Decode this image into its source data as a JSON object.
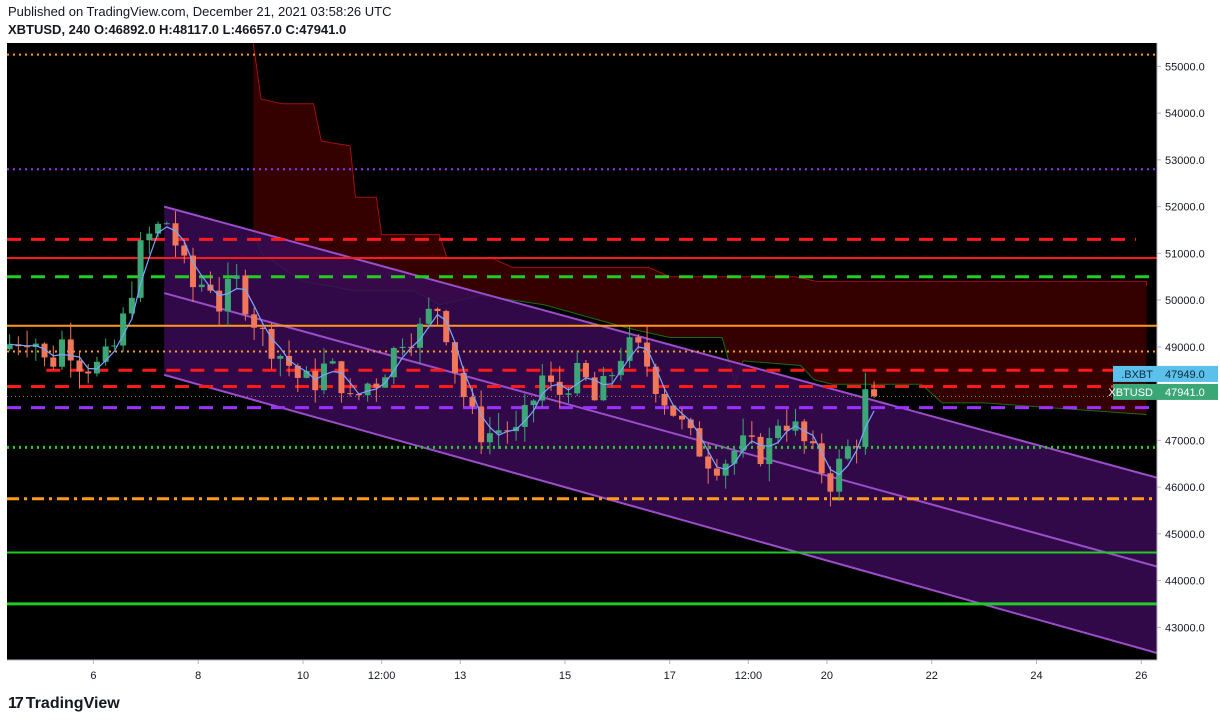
{
  "header": {
    "published": "Published on TradingView.com, December 21, 2021 03:58:26 UTC",
    "symbol": "XBTUSD, 240",
    "ohlc": "O:46892.0 H:48117.0 L:46657.0 C:47941.0"
  },
  "footer": {
    "brand": "TradingView",
    "brand_mark": "17"
  },
  "colors": {
    "background": "#000000",
    "channel_fill": "#3a0a55",
    "channel_line": "#9b4dca",
    "cloud_fill": "#3a0000",
    "up": "#3ba776",
    "down": "#f0775a",
    "red_line": "#ff1a1a",
    "green_line": "#22cc22",
    "orange_line": "#ff9a1a",
    "purple_line": "#9b30ff",
    "bxbt_tag": "#5bc0eb",
    "xbt_tag": "#3ba776"
  },
  "chart_data": {
    "type": "candlestick",
    "symbol": "XBTUSD",
    "interval": "240",
    "ylim": [
      42300,
      55500
    ],
    "y_ticks": [
      43000,
      44000,
      45000,
      46000,
      47000,
      48000,
      49000,
      50000,
      51000,
      52000,
      53000,
      54000,
      55000
    ],
    "y_tick_labels": [
      "43000.0",
      "44000.0",
      "45000.0",
      "46000.0",
      "47000.0",
      "48000.0",
      "49000.0",
      "50000.0",
      "51000.0",
      "52000.0",
      "53000.0",
      "54000.0",
      "55000.0"
    ],
    "xlim": [
      4.35,
      26.3
    ],
    "x_ticks": [
      {
        "pos": 6,
        "label": "6"
      },
      {
        "pos": 8,
        "label": "8"
      },
      {
        "pos": 10,
        "label": "10"
      },
      {
        "pos": 11.5,
        "label": "12:00"
      },
      {
        "pos": 13,
        "label": "13"
      },
      {
        "pos": 15,
        "label": "15"
      },
      {
        "pos": 17,
        "label": "17"
      },
      {
        "pos": 18.5,
        "label": "12:00"
      },
      {
        "pos": 20,
        "label": "20"
      },
      {
        "pos": 22,
        "label": "22"
      },
      {
        "pos": 24,
        "label": "24"
      },
      {
        "pos": 26,
        "label": "26"
      }
    ],
    "candle_anchors": [
      [
        4.4,
        48950
      ],
      [
        4.7,
        49150
      ],
      [
        5.0,
        49300
      ],
      [
        5.3,
        48500
      ],
      [
        5.6,
        49200
      ],
      [
        5.9,
        48700
      ],
      [
        6.2,
        48550
      ],
      [
        6.5,
        48800
      ],
      [
        6.7,
        49400
      ],
      [
        6.9,
        50300
      ],
      [
        7.1,
        51200
      ],
      [
        7.35,
        51500
      ],
      [
        7.6,
        51700
      ],
      [
        7.85,
        50800
      ],
      [
        8.1,
        50200
      ],
      [
        8.35,
        50500
      ],
      [
        8.6,
        49800
      ],
      [
        8.85,
        50500
      ],
      [
        9.1,
        49900
      ],
      [
        9.35,
        49300
      ],
      [
        9.6,
        49000
      ],
      [
        9.85,
        48700
      ],
      [
        10.1,
        48300
      ],
      [
        10.35,
        48200
      ],
      [
        10.6,
        48600
      ],
      [
        10.85,
        48400
      ],
      [
        11.1,
        47700
      ],
      [
        11.35,
        48200
      ],
      [
        11.6,
        48300
      ],
      [
        11.85,
        48800
      ],
      [
        12.1,
        49300
      ],
      [
        12.35,
        49250
      ],
      [
        12.6,
        49750
      ],
      [
        12.8,
        49900
      ],
      [
        13.0,
        48800
      ],
      [
        13.25,
        47900
      ],
      [
        13.5,
        47200
      ],
      [
        13.75,
        47150
      ],
      [
        14.0,
        47300
      ],
      [
        14.25,
        47100
      ],
      [
        14.5,
        47700
      ],
      [
        14.75,
        48400
      ],
      [
        15.0,
        47900
      ],
      [
        15.25,
        48300
      ],
      [
        15.5,
        48400
      ],
      [
        15.75,
        47800
      ],
      [
        16.0,
        48300
      ],
      [
        16.25,
        48900
      ],
      [
        16.5,
        49000
      ],
      [
        16.75,
        48600
      ],
      [
        17.0,
        48000
      ],
      [
        17.25,
        47600
      ],
      [
        17.5,
        47100
      ],
      [
        17.75,
        46800
      ],
      [
        18.0,
        46500
      ],
      [
        18.25,
        46600
      ],
      [
        18.5,
        46900
      ],
      [
        18.75,
        46800
      ],
      [
        19.0,
        46700
      ],
      [
        19.25,
        47500
      ],
      [
        19.5,
        47350
      ],
      [
        19.75,
        46900
      ],
      [
        20.0,
        46500
      ],
      [
        20.25,
        46100
      ],
      [
        20.5,
        46700
      ],
      [
        20.75,
        47100
      ],
      [
        20.9,
        47941
      ]
    ],
    "last_price": 47941.0,
    "tags": [
      {
        "label": ".BXBT",
        "value": "47949.0",
        "price": 48420
      },
      {
        "label": "XBTUSD",
        "value": "47941.0",
        "price": 48035
      }
    ],
    "channel": {
      "upper": [
        [
          7.35,
          52000
        ],
        [
          26.3,
          46200
        ]
      ],
      "middle": [
        [
          7.35,
          50150
        ],
        [
          26.3,
          44300
        ]
      ],
      "lower": [
        [
          7.35,
          48400
        ],
        [
          26.3,
          42450
        ]
      ]
    },
    "cloud": {
      "top": [
        [
          9.05,
          55500
        ],
        [
          9.2,
          54300
        ],
        [
          9.6,
          54200
        ],
        [
          10.2,
          54200
        ],
        [
          10.35,
          53400
        ],
        [
          10.9,
          53300
        ],
        [
          11.0,
          52200
        ],
        [
          11.4,
          52200
        ],
        [
          11.5,
          51400
        ],
        [
          12.6,
          51400
        ],
        [
          12.75,
          50900
        ],
        [
          13.6,
          50900
        ],
        [
          14.0,
          50700
        ],
        [
          16.6,
          50700
        ],
        [
          17.0,
          50500
        ],
        [
          19.4,
          50500
        ],
        [
          19.8,
          50400
        ],
        [
          26.1,
          50400
        ],
        [
          26.1,
          50300
        ]
      ],
      "bottom": [
        [
          9.05,
          51500
        ],
        [
          9.2,
          51000
        ],
        [
          10.0,
          50400
        ],
        [
          11.0,
          50200
        ],
        [
          12.1,
          50200
        ],
        [
          12.6,
          49900
        ],
        [
          13.4,
          50100
        ],
        [
          14.6,
          49900
        ],
        [
          16.2,
          49400
        ],
        [
          17.0,
          49200
        ],
        [
          18.0,
          49200
        ],
        [
          18.25,
          48200
        ],
        [
          18.4,
          48700
        ],
        [
          19.5,
          48600
        ],
        [
          19.75,
          48300
        ],
        [
          20.1,
          48200
        ],
        [
          21.8,
          48200
        ],
        [
          22.2,
          47800
        ],
        [
          23.0,
          47800
        ],
        [
          26.1,
          47550
        ]
      ]
    },
    "horizontal_lines": [
      {
        "price": 55250,
        "color": "#ff9a1a",
        "style": "dotted",
        "width": 2
      },
      {
        "price": 52800,
        "color": "#9b30ff",
        "style": "dotted",
        "width": 2
      },
      {
        "price": 51300,
        "color": "#ff1a1a",
        "style": "dashed",
        "width": 3,
        "x_end": 25.9
      },
      {
        "price": 50900,
        "color": "#ff1a1a",
        "style": "solid",
        "width": 2
      },
      {
        "price": 50500,
        "color": "#22cc22",
        "style": "dashed",
        "width": 3
      },
      {
        "price": 49450,
        "color": "#ff9a1a",
        "style": "solid",
        "width": 2
      },
      {
        "price": 48900,
        "color": "#ff9a1a",
        "style": "dotted",
        "width": 2
      },
      {
        "price": 48500,
        "color": "#ff1a1a",
        "style": "dashed",
        "width": 3,
        "x_start": 5.1
      },
      {
        "price": 48150,
        "color": "#ff1a1a",
        "style": "dashed",
        "width": 3
      },
      {
        "price": 47700,
        "color": "#9b30ff",
        "style": "dashed",
        "width": 3
      },
      {
        "price": 46850,
        "color": "#22cc22",
        "style": "dotted",
        "width": 3
      },
      {
        "price": 45750,
        "color": "#ff9a1a",
        "style": "dashdot",
        "width": 3
      },
      {
        "price": 44600,
        "color": "#22cc22",
        "style": "solid",
        "width": 2
      },
      {
        "price": 43500,
        "color": "#22cc22",
        "style": "solid",
        "width": 3
      }
    ]
  }
}
